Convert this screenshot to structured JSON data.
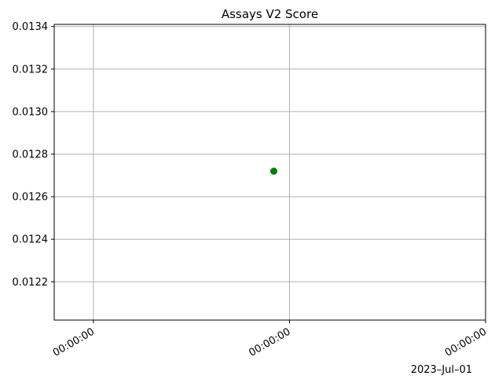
{
  "chart_data": {
    "type": "scatter",
    "title": "Assays V2 Score",
    "xlabel": "",
    "ylabel": "",
    "x_axis": {
      "type": "time",
      "tick_labels": [
        "00:00:00",
        "00:00:00",
        "00:00:00"
      ],
      "offset_label": "2023–Jul–01",
      "range_units": [
        -0.2,
        2.0
      ],
      "tick_values": [
        0,
        1,
        2
      ]
    },
    "y_axis": {
      "ylim": [
        0.01202,
        0.01341
      ],
      "ticks": [
        0.0122,
        0.0124,
        0.0126,
        0.0128,
        0.013,
        0.0132,
        0.0134
      ],
      "tick_labels": [
        "0.0122",
        "0.0124",
        "0.0126",
        "0.0128",
        "0.0130",
        "0.0132",
        "0.0134"
      ]
    },
    "series": [
      {
        "color": "#008000",
        "marker": "circle",
        "points": [
          {
            "x": 0.92,
            "y": 0.01272
          }
        ]
      }
    ],
    "grid": true,
    "legend": "none"
  }
}
